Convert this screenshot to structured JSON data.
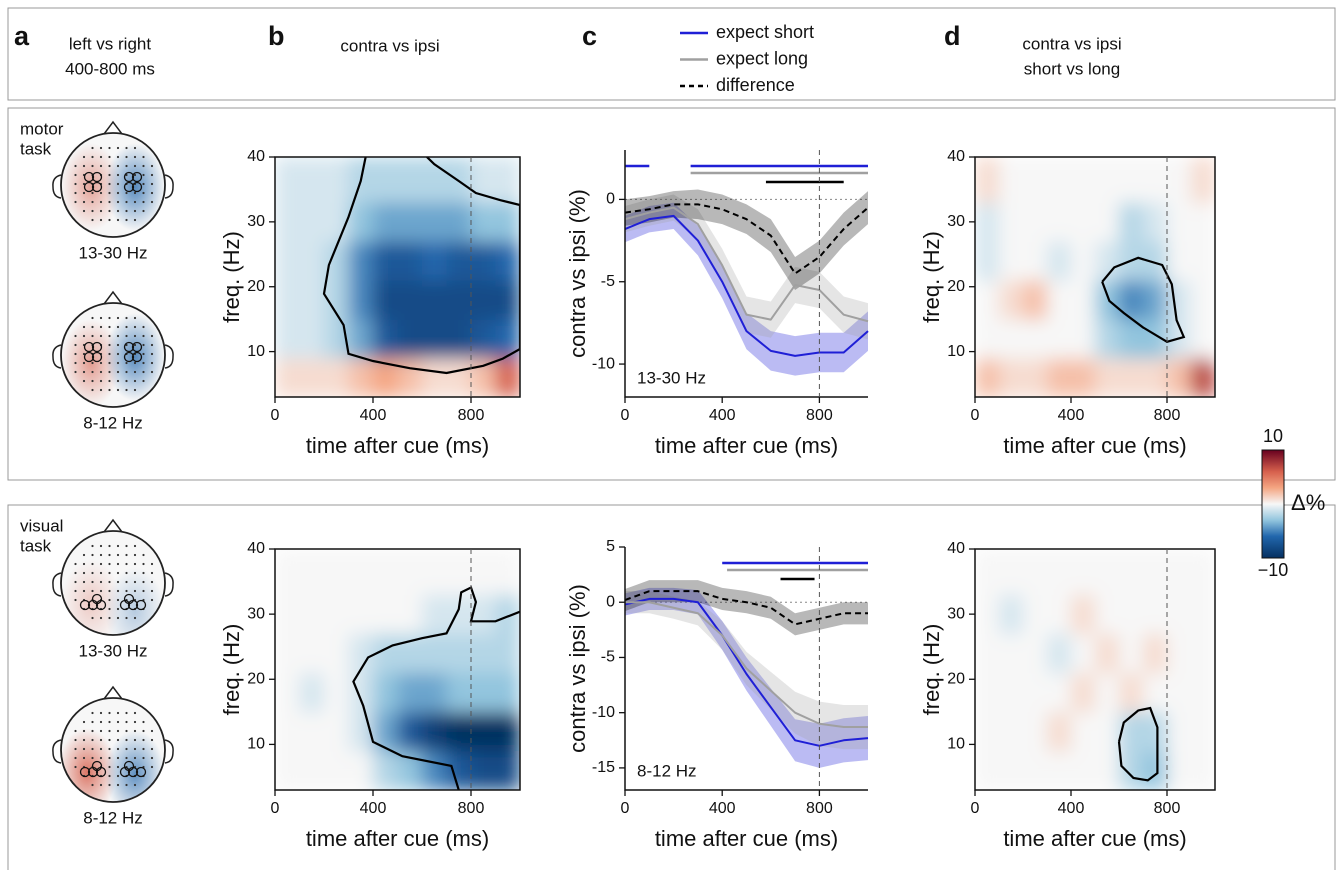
{
  "header": {
    "panels": [
      {
        "letter": "a",
        "title": [
          "left vs right",
          "400-800 ms"
        ]
      },
      {
        "letter": "b",
        "title": [
          "contra vs ipsi"
        ]
      },
      {
        "letter": "c"
      },
      {
        "letter": "d",
        "title": [
          "contra vs ipsi",
          "short vs long"
        ]
      }
    ]
  },
  "rows": [
    {
      "task": [
        "motor",
        "task"
      ],
      "topo_labels": [
        "13-30 Hz",
        "8-12 Hz"
      ]
    },
    {
      "task": [
        "visual",
        "task"
      ],
      "topo_labels": [
        "13-30 Hz",
        "8-12 Hz"
      ]
    }
  ],
  "colorbar": {
    "label": "Δ%",
    "lim": [
      -10,
      10
    ],
    "ticks": [
      10,
      {
        "value": -10,
        "label": "−10"
      }
    ]
  },
  "chart_data": [
    {
      "type": "heatmap",
      "xlabel": "time after cue (ms)",
      "ylabel": "freq. (Hz)",
      "x_edges": [
        0,
        100,
        200,
        300,
        400,
        500,
        600,
        700,
        800,
        900,
        1000
      ],
      "y_edges": [
        3,
        9,
        15,
        21,
        27,
        33,
        40
      ],
      "values": [
        [
          1,
          1,
          1,
          2,
          3,
          2,
          1,
          1,
          2,
          6
        ],
        [
          -1,
          -1,
          -2,
          -4,
          -7,
          -8,
          -8,
          -8,
          -7,
          -6
        ],
        [
          -1,
          -1,
          -2,
          -5,
          -8,
          -8,
          -8,
          -8,
          -8,
          -8
        ],
        [
          -1,
          -1,
          -2,
          -5,
          -7,
          -7,
          -6,
          -7,
          -7,
          -6
        ],
        [
          -1,
          -1,
          -1,
          -3,
          -4,
          -4,
          -4,
          -4,
          -3,
          -3
        ],
        [
          -1,
          -1,
          -1,
          -2,
          -2,
          -2,
          -2,
          -2,
          -1,
          -1
        ]
      ],
      "zlim": [
        -10,
        10
      ],
      "xlim": [
        0,
        1000
      ],
      "ylim": [
        3,
        40
      ],
      "xticks": [
        0,
        400,
        800
      ],
      "yticks": [
        10,
        20,
        30,
        40
      ],
      "vline": 800
    },
    {
      "type": "line",
      "xlabel": "time after cue (ms)",
      "ylabel": "contra vs ipsi (%)",
      "annotation": "13-30 Hz",
      "x": [
        0,
        100,
        200,
        300,
        400,
        500,
        600,
        700,
        800,
        900,
        1000
      ],
      "series": [
        {
          "name": "expect short",
          "color": "#1f1fd6",
          "values": [
            -1.8,
            -1.2,
            -1.0,
            -2.5,
            -5,
            -8,
            -9.2,
            -9.5,
            -9.3,
            -9.3,
            -8
          ],
          "errors": [
            0.8,
            0.8,
            0.8,
            0.9,
            1,
            1.1,
            1.2,
            1.2,
            1.2,
            1.2,
            1.2
          ],
          "significance": [
            [
              0,
              100
            ],
            [
              270,
              1000
            ]
          ]
        },
        {
          "name": "expect long",
          "color": "#a0a0a0",
          "values": [
            -1.2,
            -0.8,
            -0.5,
            -1.5,
            -4,
            -7,
            -7.3,
            -5.2,
            -5.5,
            -7,
            -7.4
          ],
          "errors": [
            0.8,
            0.8,
            0.8,
            0.9,
            1,
            1.1,
            1.1,
            1.1,
            1.1,
            1.1,
            1.1
          ],
          "significance": [
            [
              270,
              1000
            ]
          ]
        },
        {
          "name": "difference",
          "color": "#000000",
          "dashed": true,
          "values": [
            -0.8,
            -0.6,
            -0.3,
            -0.3,
            -0.6,
            -1.2,
            -2.2,
            -4.5,
            -3.5,
            -1.8,
            -0.5
          ],
          "errors": [
            0.8,
            0.8,
            0.8,
            0.9,
            0.9,
            0.9,
            1,
            1,
            1,
            1,
            1
          ],
          "significance": [
            [
              580,
              900
            ]
          ]
        }
      ],
      "xlim": [
        0,
        1000
      ],
      "ylim": [
        -12,
        3
      ],
      "xticks": [
        0,
        400,
        800
      ],
      "yticks": [
        -10,
        -5,
        0
      ],
      "hline": 0,
      "vline": 800
    },
    {
      "type": "heatmap",
      "xlabel": "time after cue (ms)",
      "ylabel": "freq. (Hz)",
      "x_edges": [
        0,
        100,
        200,
        300,
        400,
        500,
        600,
        700,
        800,
        900,
        1000
      ],
      "y_edges": [
        3,
        9,
        15,
        21,
        27,
        33,
        40
      ],
      "values": [
        [
          2,
          1,
          1,
          2,
          2,
          1,
          1,
          1,
          2,
          7
        ],
        [
          0,
          0,
          0,
          0,
          0,
          -2,
          -3,
          -3,
          -1,
          0
        ],
        [
          0,
          1,
          2,
          0,
          0,
          -3,
          -5,
          -4,
          -1,
          0
        ],
        [
          -1,
          0,
          0,
          -1,
          0,
          -1,
          -2,
          -2,
          0,
          0
        ],
        [
          -1,
          0,
          0,
          0,
          0,
          0,
          -2,
          -1,
          0,
          0
        ],
        [
          1,
          0,
          0,
          0,
          0,
          0,
          0,
          0,
          0,
          1
        ]
      ],
      "zlim": [
        -10,
        10
      ],
      "xlim": [
        0,
        1000
      ],
      "ylim": [
        3,
        40
      ],
      "xticks": [
        0,
        400,
        800
      ],
      "yticks": [
        10,
        20,
        30,
        40
      ],
      "vline": 800
    },
    {
      "type": "heatmap",
      "xlabel": "time after cue (ms)",
      "ylabel": "freq. (Hz)",
      "x_edges": [
        0,
        100,
        200,
        300,
        400,
        500,
        600,
        700,
        800,
        900,
        1000
      ],
      "y_edges": [
        3,
        9,
        15,
        21,
        27,
        33,
        40
      ],
      "values": [
        [
          0,
          0,
          0,
          0,
          -2,
          -3,
          -5,
          -7,
          -8,
          -8
        ],
        [
          0,
          0,
          0,
          -1,
          -4,
          -7,
          -9,
          -10,
          -10,
          -10
        ],
        [
          0,
          -1,
          0,
          -1,
          -3,
          -4,
          -4,
          -3,
          -3,
          -3
        ],
        [
          0,
          0,
          0,
          -1,
          -2,
          -2,
          -2,
          -2,
          -2,
          -2
        ],
        [
          0,
          0,
          0,
          0,
          0,
          0,
          -1,
          -1,
          -1,
          -2
        ],
        [
          0,
          0,
          0,
          0,
          0,
          0,
          0,
          0,
          0,
          0
        ]
      ],
      "zlim": [
        -10,
        10
      ],
      "xlim": [
        0,
        1000
      ],
      "ylim": [
        3,
        40
      ],
      "xticks": [
        0,
        400,
        800
      ],
      "yticks": [
        10,
        20,
        30,
        40
      ],
      "vline": 800
    },
    {
      "type": "line",
      "xlabel": "time after cue (ms)",
      "ylabel": "contra vs ipsi (%)",
      "annotation": "8-12 Hz",
      "x": [
        0,
        100,
        200,
        300,
        400,
        500,
        600,
        700,
        800,
        900,
        1000
      ],
      "series": [
        {
          "color": "#1f1fd6",
          "values": [
            -0.2,
            0.3,
            0.3,
            0,
            -3,
            -6.5,
            -9.5,
            -12.5,
            -13,
            -12.5,
            -12.3
          ],
          "errors": [
            1,
            1,
            1,
            1.1,
            1.3,
            1.5,
            1.7,
            1.9,
            2,
            2,
            2
          ],
          "significance": [
            [
              400,
              1000
            ]
          ]
        },
        {
          "color": "#a0a0a0",
          "values": [
            0,
            0,
            -0.5,
            -1,
            -3,
            -6,
            -8,
            -10,
            -11,
            -11.3,
            -11.3
          ],
          "errors": [
            1,
            1,
            1,
            1.1,
            1.3,
            1.5,
            1.7,
            1.9,
            2,
            2,
            2
          ],
          "significance": [
            [
              420,
              1000
            ]
          ]
        },
        {
          "color": "#000000",
          "dashed": true,
          "values": [
            0.2,
            1,
            1,
            1,
            0.3,
            0,
            -0.5,
            -2,
            -1.5,
            -1,
            -1
          ],
          "errors": [
            1,
            1,
            1,
            1,
            1,
            1,
            1,
            1,
            1,
            1,
            1
          ],
          "significance": [
            [
              640,
              780
            ]
          ]
        }
      ],
      "xlim": [
        0,
        1000
      ],
      "ylim": [
        -17,
        5
      ],
      "xticks": [
        0,
        400,
        800
      ],
      "yticks": [
        -15,
        -10,
        -5,
        0,
        5
      ],
      "hline": 0,
      "vline": 800
    },
    {
      "type": "heatmap",
      "xlabel": "time after cue (ms)",
      "ylabel": "freq. (Hz)",
      "x_edges": [
        0,
        100,
        200,
        300,
        400,
        500,
        600,
        700,
        800,
        900,
        1000
      ],
      "y_edges": [
        3,
        9,
        15,
        21,
        27,
        33,
        40
      ],
      "values": [
        [
          0,
          0,
          0,
          0,
          0,
          0,
          -2,
          -3,
          0,
          0
        ],
        [
          0,
          0,
          0,
          1,
          0,
          0,
          -2,
          -2,
          0,
          0
        ],
        [
          0,
          0,
          0,
          0,
          1,
          0,
          1,
          0,
          0,
          0
        ],
        [
          0,
          0,
          0,
          -1,
          0,
          1,
          0,
          1,
          0,
          0
        ],
        [
          0,
          -1,
          0,
          0,
          1,
          0,
          0,
          0,
          0,
          0
        ],
        [
          0,
          0,
          0,
          0,
          0,
          0,
          0,
          0,
          0,
          0
        ]
      ],
      "zlim": [
        -10,
        10
      ],
      "xlim": [
        0,
        1000
      ],
      "ylim": [
        3,
        40
      ],
      "xticks": [
        0,
        400,
        800
      ],
      "yticks": [
        10,
        20,
        30,
        40
      ],
      "vline": 800
    }
  ]
}
